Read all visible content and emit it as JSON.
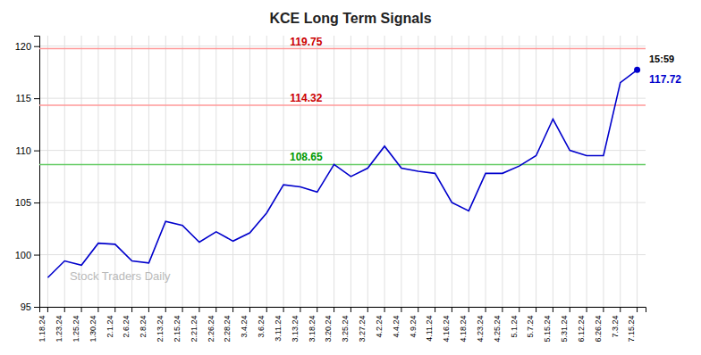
{
  "chart_data": {
    "type": "line",
    "title": "KCE Long Term Signals",
    "categories": [
      "1.18.24",
      "1.23.24",
      "1.25.24",
      "1.30.24",
      "2.1.24",
      "2.6.24",
      "2.8.24",
      "2.13.24",
      "2.15.24",
      "2.21.24",
      "2.26.24",
      "2.28.24",
      "3.4.24",
      "3.6.24",
      "3.11.24",
      "3.13.24",
      "3.18.24",
      "3.20.24",
      "3.25.24",
      "3.27.24",
      "4.2.24",
      "4.4.24",
      "4.9.24",
      "4.11.24",
      "4.16.24",
      "4.18.24",
      "4.23.24",
      "4.25.24",
      "5.1.24",
      "5.7.24",
      "5.15.24",
      "5.31.24",
      "6.12.24",
      "6.26.24",
      "7.3.24",
      "7.15.24"
    ],
    "values": [
      97.8,
      99.4,
      99.0,
      101.1,
      101.0,
      99.4,
      99.2,
      103.2,
      102.8,
      101.2,
      102.2,
      101.3,
      102.1,
      104.0,
      106.7,
      106.5,
      106.0,
      108.65,
      107.5,
      108.3,
      110.4,
      108.3,
      108.0,
      107.8,
      105.0,
      104.2,
      107.8,
      107.8,
      108.5,
      109.5,
      113.0,
      110.0,
      109.5,
      109.5,
      116.5,
      117.72
    ],
    "color": "#0000cc",
    "ylim": [
      95,
      121
    ],
    "yticks": [
      95,
      100,
      105,
      110,
      115,
      120
    ],
    "grid": true,
    "reference_lines": [
      {
        "value": 119.75,
        "label": "119.75",
        "color": "#ff9999",
        "label_color": "#cc0000"
      },
      {
        "value": 114.32,
        "label": "114.32",
        "color": "#ff9999",
        "label_color": "#cc0000"
      },
      {
        "value": 108.65,
        "label": "108.65",
        "color": "#66cc66",
        "label_color": "#009900"
      }
    ],
    "last_price": {
      "value": 117.72,
      "label": "117.72",
      "time": "15:59"
    },
    "annotations": [
      {
        "text": "Stock Traders Daily",
        "color": "#aaaaaa"
      }
    ]
  }
}
